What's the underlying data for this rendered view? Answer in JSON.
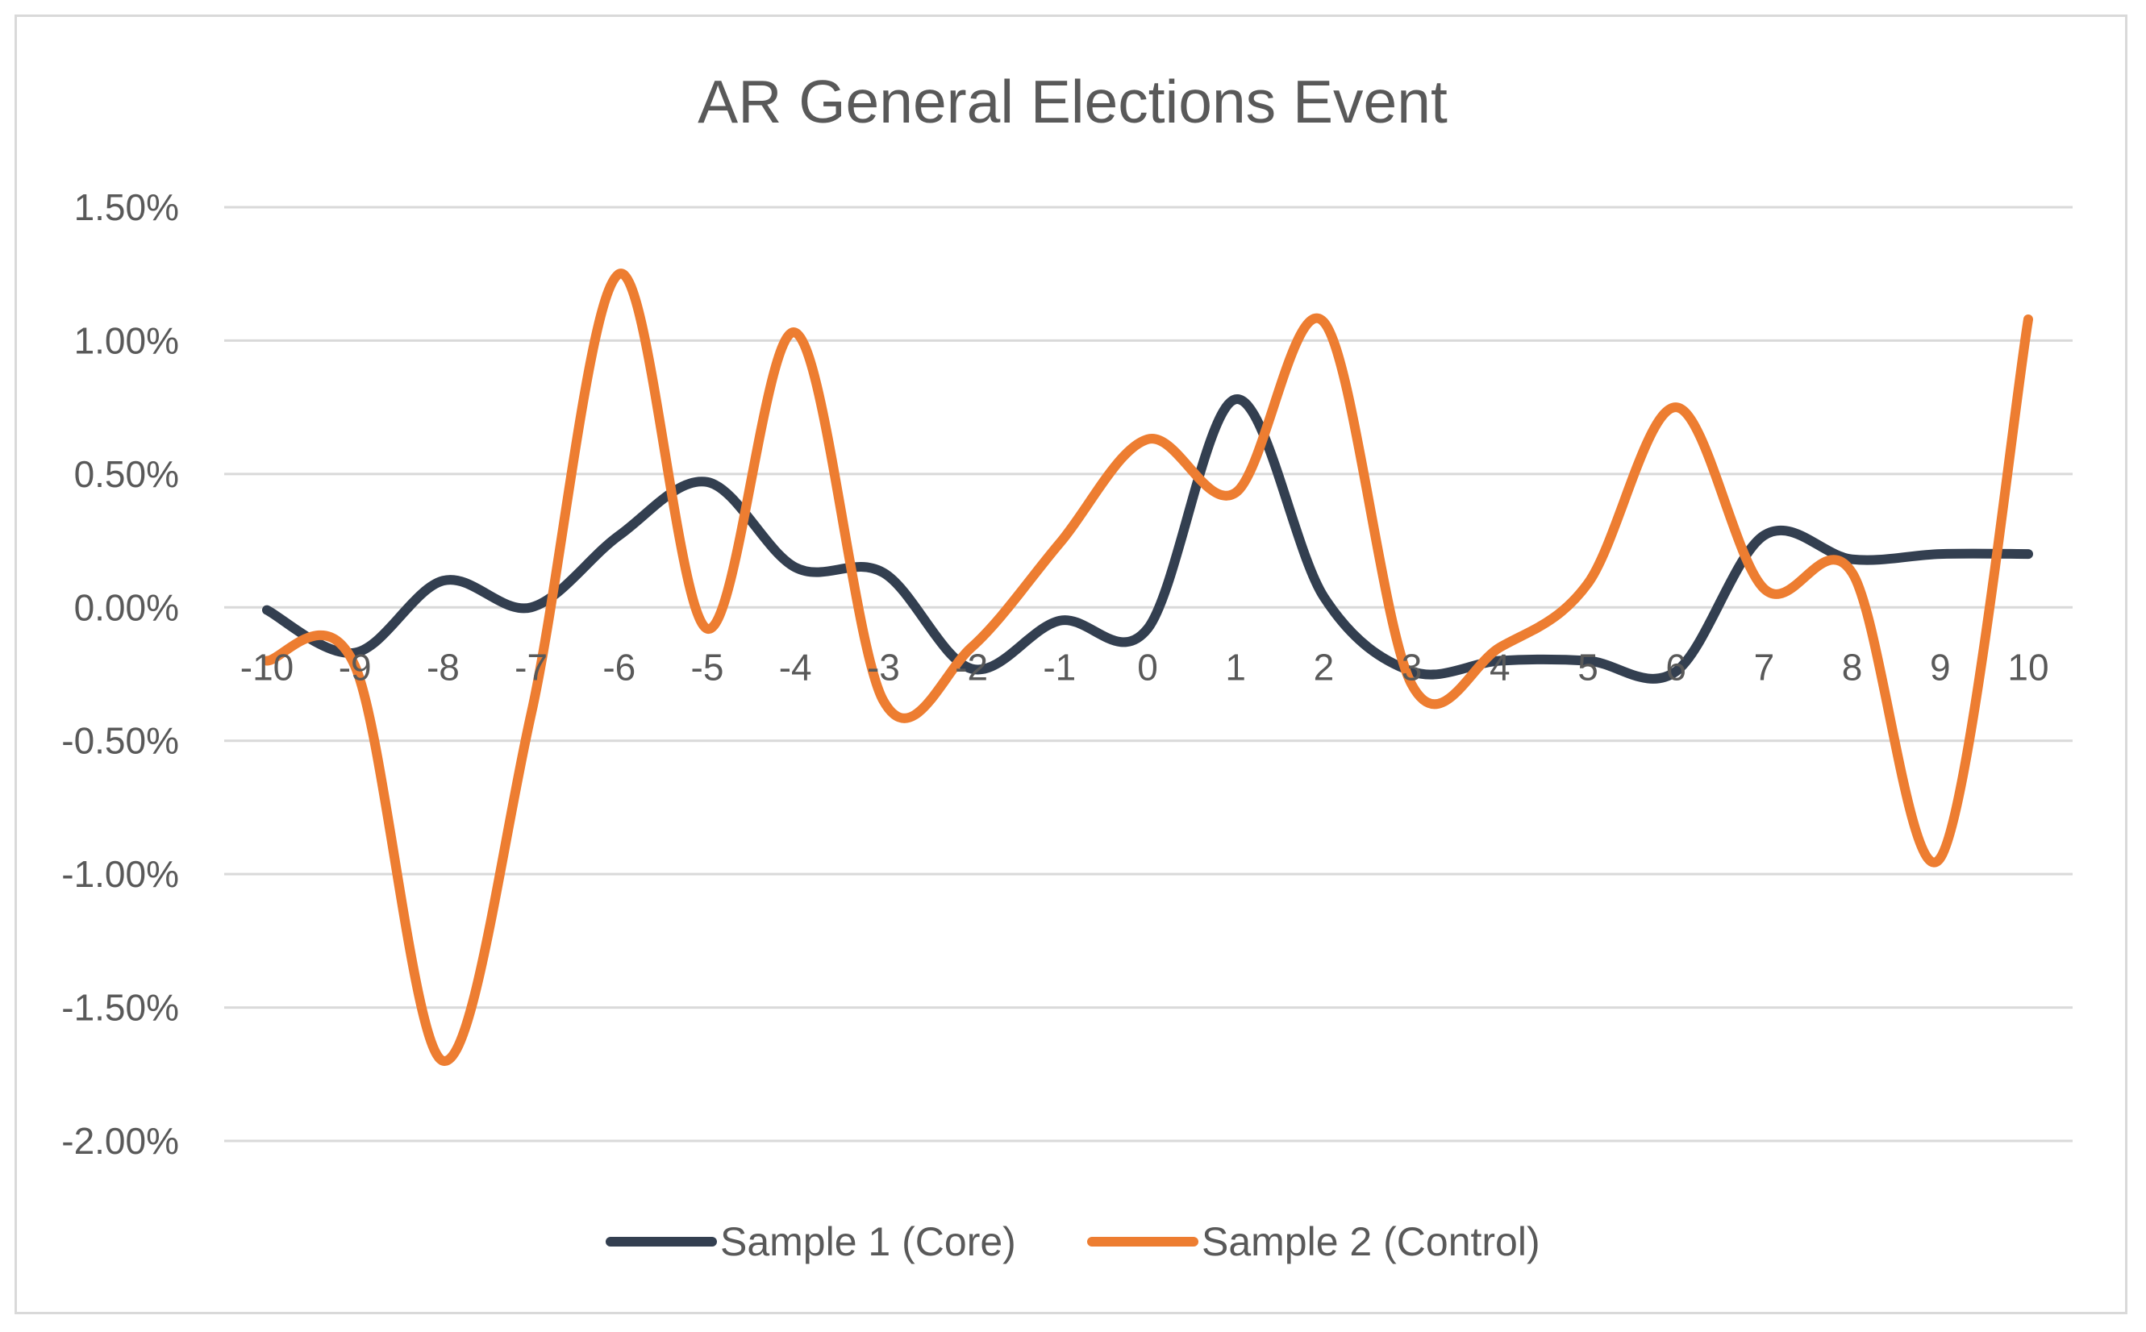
{
  "chart_data": {
    "type": "line",
    "title": "AR  General Elections Event",
    "xlabel": "",
    "ylabel": "",
    "categories": [
      "-10",
      "-9",
      "-8",
      "-7",
      "-6",
      "-5",
      "-4",
      "-3",
      "-2",
      "-1",
      "0",
      "1",
      "2",
      "3",
      "4",
      "5",
      "6",
      "7",
      "8",
      "9",
      "10"
    ],
    "y_ticks": [
      "1.50%",
      "1.00%",
      "0.50%",
      "0.00%",
      "-0.50%",
      "-1.00%",
      "-1.50%",
      "-2.00%"
    ],
    "ylim": [
      -2.0,
      1.5
    ],
    "y_unit": "%",
    "grid": true,
    "legend_position": "bottom",
    "series": [
      {
        "name": "Sample 1 (Core)",
        "color": "#333f50",
        "values": [
          -0.01,
          -0.17,
          0.1,
          0.0,
          0.27,
          0.47,
          0.15,
          0.13,
          -0.23,
          -0.05,
          -0.08,
          0.78,
          0.04,
          -0.24,
          -0.2,
          -0.2,
          -0.24,
          0.27,
          0.18,
          0.2,
          0.2
        ]
      },
      {
        "name": "Sample 2 (Control)",
        "color": "#ed7d31",
        "values": [
          -0.2,
          -0.22,
          -1.7,
          -0.4,
          1.25,
          -0.08,
          1.03,
          -0.35,
          -0.15,
          0.24,
          0.63,
          0.43,
          1.07,
          -0.29,
          -0.15,
          0.09,
          0.75,
          0.07,
          0.13,
          -0.94,
          1.08
        ]
      }
    ]
  }
}
